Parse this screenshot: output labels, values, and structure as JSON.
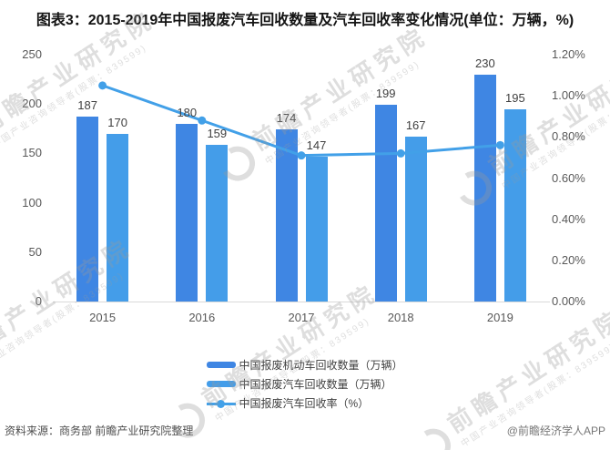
{
  "title": "图表3：2015-2019年中国报废汽车回收数量及汽车回收率变化情况(单位：万辆，%)",
  "chart_data": {
    "type": "bar+line",
    "categories": [
      "2015",
      "2016",
      "2017",
      "2018",
      "2019"
    ],
    "series": [
      {
        "name": "中国报废机动车回收数量（万辆）",
        "kind": "bar",
        "axis": "left",
        "color": "#3F86E3",
        "values": [
          187,
          180,
          174,
          199,
          230
        ]
      },
      {
        "name": "中国报废汽车回收数量（万辆）",
        "kind": "bar",
        "axis": "left",
        "color": "#449DE9",
        "values": [
          170,
          159,
          147,
          167,
          195
        ]
      },
      {
        "name": "中国报废汽车回收率（%）",
        "kind": "line",
        "axis": "right",
        "color": "#42A0E8",
        "values": [
          1.05,
          0.88,
          0.71,
          0.72,
          0.76
        ]
      }
    ],
    "left_axis": {
      "min": 0,
      "max": 250,
      "ticks": [
        0,
        50,
        100,
        150,
        200,
        250
      ]
    },
    "right_axis": {
      "min": 0,
      "max": 1.2,
      "ticks": [
        "0.00%",
        "0.20%",
        "0.40%",
        "0.60%",
        "0.80%",
        "1.00%",
        "1.20%"
      ]
    },
    "grid": false,
    "legend_position": "bottom"
  },
  "watermark": {
    "big_text": "前瞻产业研究院",
    "small_text": "中国产业咨询领导者(股票：839599)"
  },
  "footer": {
    "source": "资料来源：商务部 前瞻产业研究院整理",
    "attribution": "@前瞻经济学人APP"
  }
}
